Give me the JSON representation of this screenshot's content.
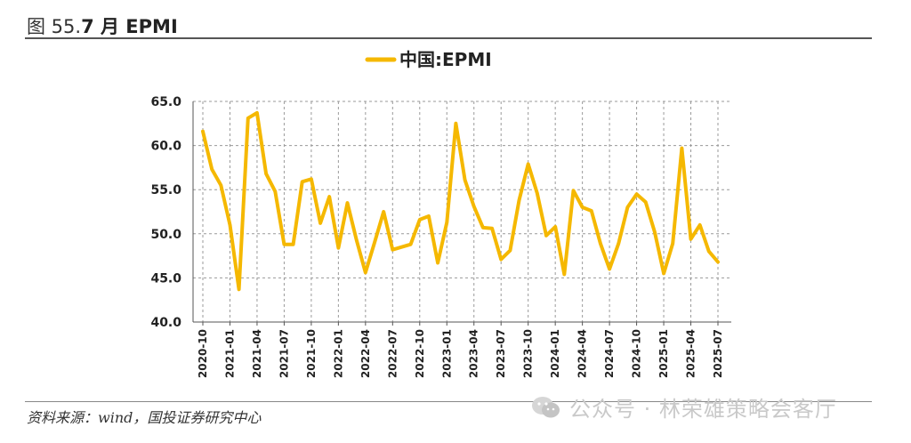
{
  "figure": {
    "title_prefix": "图 55.",
    "title_main": "7 月 EPMI",
    "source": "资料来源：wind，国投证券研究中心",
    "watermark": "公众号 · 林荣雄策略会客厅"
  },
  "colors": {
    "series": "#F5B800",
    "grid": "#9a9a9a",
    "axis": "#555555"
  },
  "icons": {
    "watermark_icon": "wechat-icon"
  },
  "chart_data": {
    "type": "line",
    "title": "",
    "xlabel": "",
    "ylabel": "",
    "ylim": [
      40,
      65
    ],
    "yticks": [
      "40.0",
      "45.0",
      "50.0",
      "55.0",
      "60.0",
      "65.0"
    ],
    "xtick_labels": [
      "2020-10",
      "2021-01",
      "2021-04",
      "2021-07",
      "2021-10",
      "2022-01",
      "2022-04",
      "2022-07",
      "2022-10",
      "2023-01",
      "2023-04",
      "2023-07",
      "2023-10",
      "2024-01",
      "2024-04",
      "2024-07",
      "2024-10",
      "2025-01",
      "2025-04",
      "2025-07"
    ],
    "grid": true,
    "legend": "top-center",
    "series": [
      {
        "name": "中国:EPMI",
        "values": [
          61.6,
          57.3,
          55.5,
          51.0,
          43.7,
          63.1,
          63.7,
          56.8,
          54.8,
          48.8,
          48.8,
          55.9,
          56.2,
          51.2,
          54.2,
          48.4,
          53.5,
          49.3,
          45.6,
          49.0,
          52.5,
          48.2,
          48.5,
          48.8,
          51.6,
          52.0,
          46.7,
          51.3,
          62.5,
          56.1,
          53.1,
          50.7,
          50.6,
          47.1,
          48.1,
          53.8,
          57.9,
          54.6,
          49.8,
          50.8,
          45.4,
          54.9,
          53.0,
          52.6,
          48.9,
          46.0,
          48.9,
          53.0,
          54.5,
          53.6,
          50.2,
          45.5,
          48.9,
          59.7,
          49.4,
          51.0,
          48.0,
          46.8
        ]
      }
    ]
  }
}
